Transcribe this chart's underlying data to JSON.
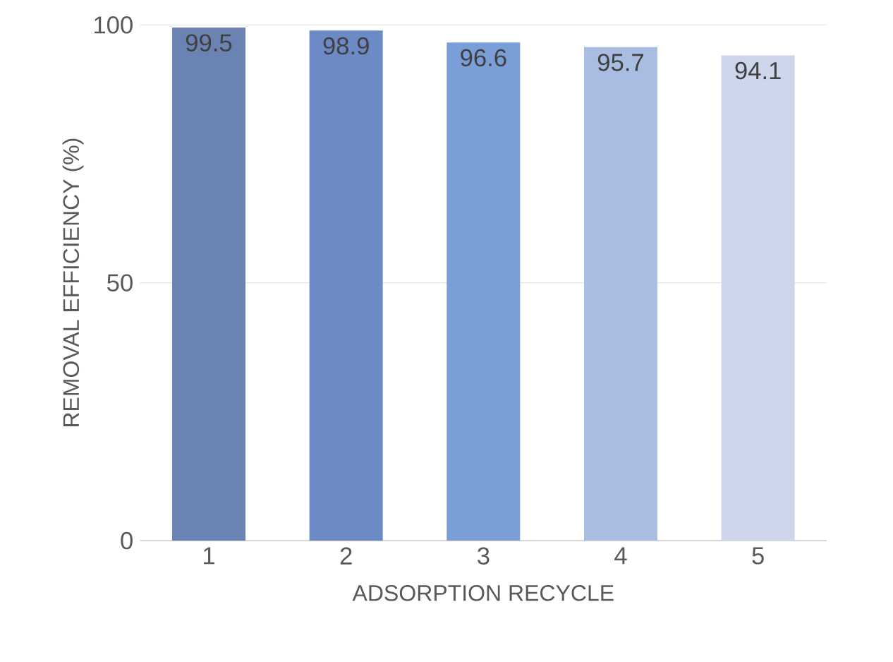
{
  "chart_data": {
    "type": "bar",
    "xlabel": "ADSORPTION RECYCLE",
    "ylabel": "REMOVAL EFFICIENCY (%)",
    "categories": [
      "1",
      "2",
      "3",
      "4",
      "5"
    ],
    "values": [
      99.5,
      98.9,
      96.6,
      95.7,
      94.1
    ],
    "colors": [
      "#6a83b2",
      "#6c8ac6",
      "#7a9fd8",
      "#a9bde2",
      "#cdd6eb"
    ],
    "ylim": [
      0,
      100
    ],
    "yticks": [
      0,
      50,
      100
    ],
    "grid": "y",
    "data_labels": true
  }
}
